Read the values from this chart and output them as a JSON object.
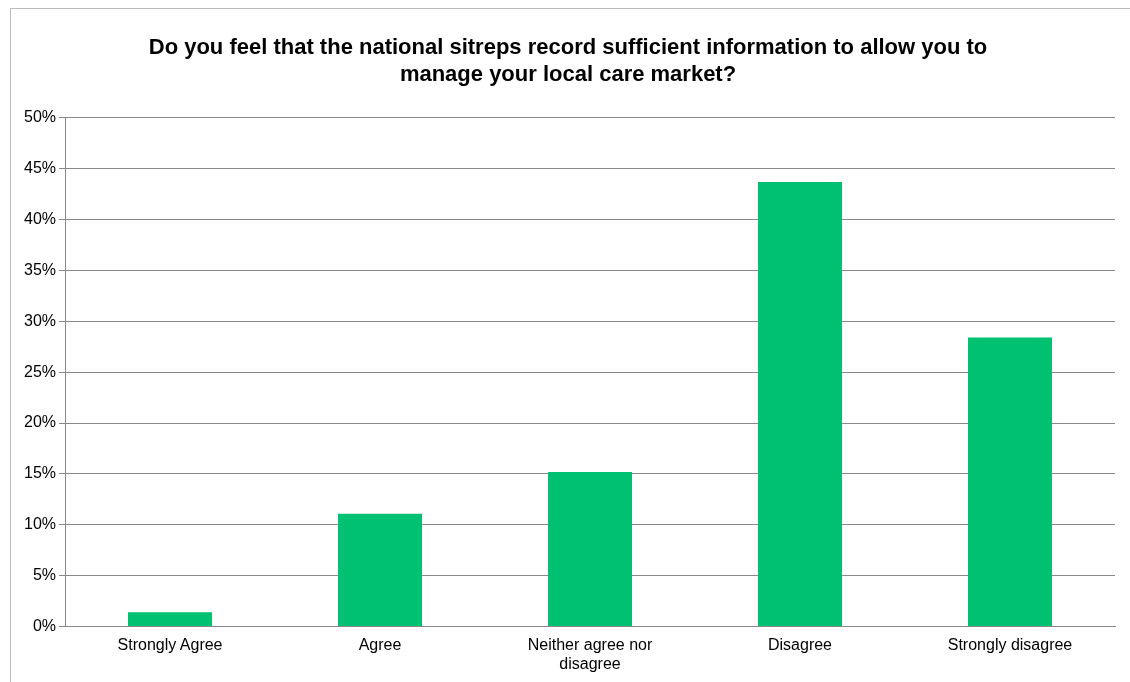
{
  "chart_data": {
    "type": "bar",
    "title": "Do you feel that the national sitreps record sufficient information to allow you to manage your local care market?",
    "categories": [
      "Strongly Agree",
      "Agree",
      "Neither agree nor disagree",
      "Disagree",
      "Strongly disagree"
    ],
    "values": [
      1.4,
      11.1,
      15.2,
      43.7,
      28.4
    ],
    "color": "#00c071",
    "ylim": [
      0,
      50
    ],
    "yticks": [
      {
        "value": 0,
        "label": "0%"
      },
      {
        "value": 5,
        "label": "5%"
      },
      {
        "value": 10,
        "label": "10%"
      },
      {
        "value": 15,
        "label": "15%"
      },
      {
        "value": 20,
        "label": "20%"
      },
      {
        "value": 25,
        "label": "25%"
      },
      {
        "value": 30,
        "label": "30%"
      },
      {
        "value": 35,
        "label": "35%"
      },
      {
        "value": 40,
        "label": "40%"
      },
      {
        "value": 45,
        "label": "45%"
      },
      {
        "value": 50,
        "label": "50%"
      }
    ],
    "grid": "y",
    "legend": false
  }
}
